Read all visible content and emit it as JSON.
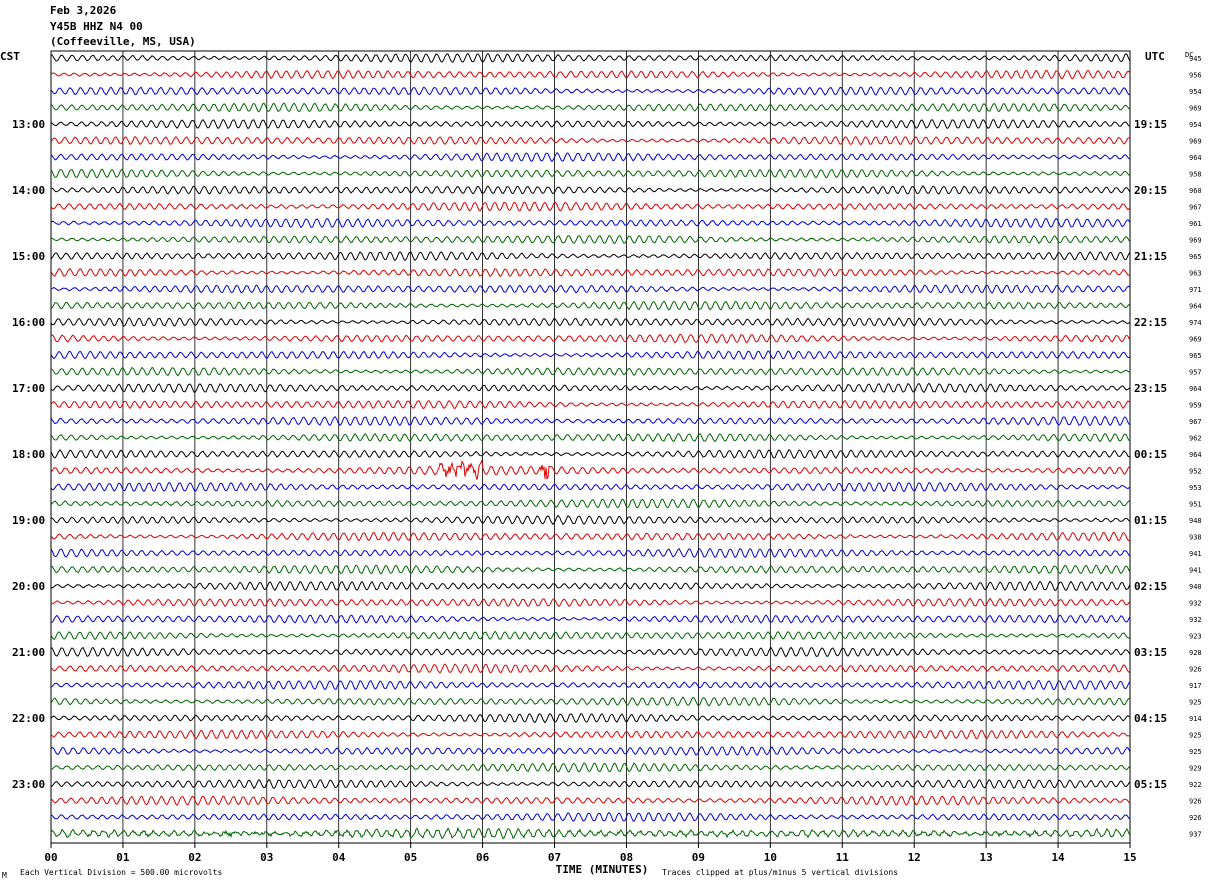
{
  "header": {
    "date": "Feb 3,2026",
    "station": "Y45B HHZ N4 00",
    "location": "(Coffeeville, MS, USA)"
  },
  "left_zone": "CST",
  "right_zone": "UTC",
  "dc_label": "DC",
  "footer": {
    "scale_note": "Each Vertical Division =  500.00 microvolts",
    "clip_note": "Traces clipped at plus/minus 5 vertical divisions",
    "small_mark": "M"
  },
  "colors": {
    "traces": [
      "#000000",
      "#dd0000",
      "#0000dd",
      "#006600"
    ],
    "grid": "#000000"
  },
  "chart_data": {
    "type": "line",
    "title": "Y45B HHZ N4 00 (Coffeeville, MS, USA)",
    "xlabel": "TIME (MINUTES)",
    "x_ticks": [
      "00",
      "01",
      "02",
      "03",
      "04",
      "05",
      "06",
      "07",
      "08",
      "09",
      "10",
      "11",
      "12",
      "13",
      "14",
      "15"
    ],
    "xlim": [
      0,
      15
    ],
    "left_hour_labels": [
      "13:00",
      "14:00",
      "15:00",
      "16:00",
      "17:00",
      "18:00",
      "19:00",
      "20:00",
      "21:00",
      "22:00",
      "23:00"
    ],
    "right_hour_labels": [
      "19:15",
      "20:15",
      "21:15",
      "22:15",
      "23:15",
      "00:15",
      "01:15",
      "02:15",
      "03:15",
      "04:15",
      "05:15"
    ],
    "dc_offsets": [
      945,
      956,
      954,
      969,
      954,
      969,
      964,
      958,
      960,
      967,
      961,
      969,
      965,
      963,
      971,
      964,
      974,
      969,
      965,
      957,
      964,
      959,
      967,
      962,
      964,
      952,
      953,
      951,
      948,
      938,
      941,
      941,
      940,
      932,
      932,
      923,
      928,
      926,
      917,
      925,
      914,
      925,
      925,
      929,
      922,
      926,
      926,
      937
    ],
    "trace_count": 48,
    "events": [
      {
        "trace": 25,
        "minute_start": 5.4,
        "minute_end": 6.0
      },
      {
        "trace": 25,
        "minute_start": 6.8,
        "minute_end": 6.95
      }
    ]
  }
}
